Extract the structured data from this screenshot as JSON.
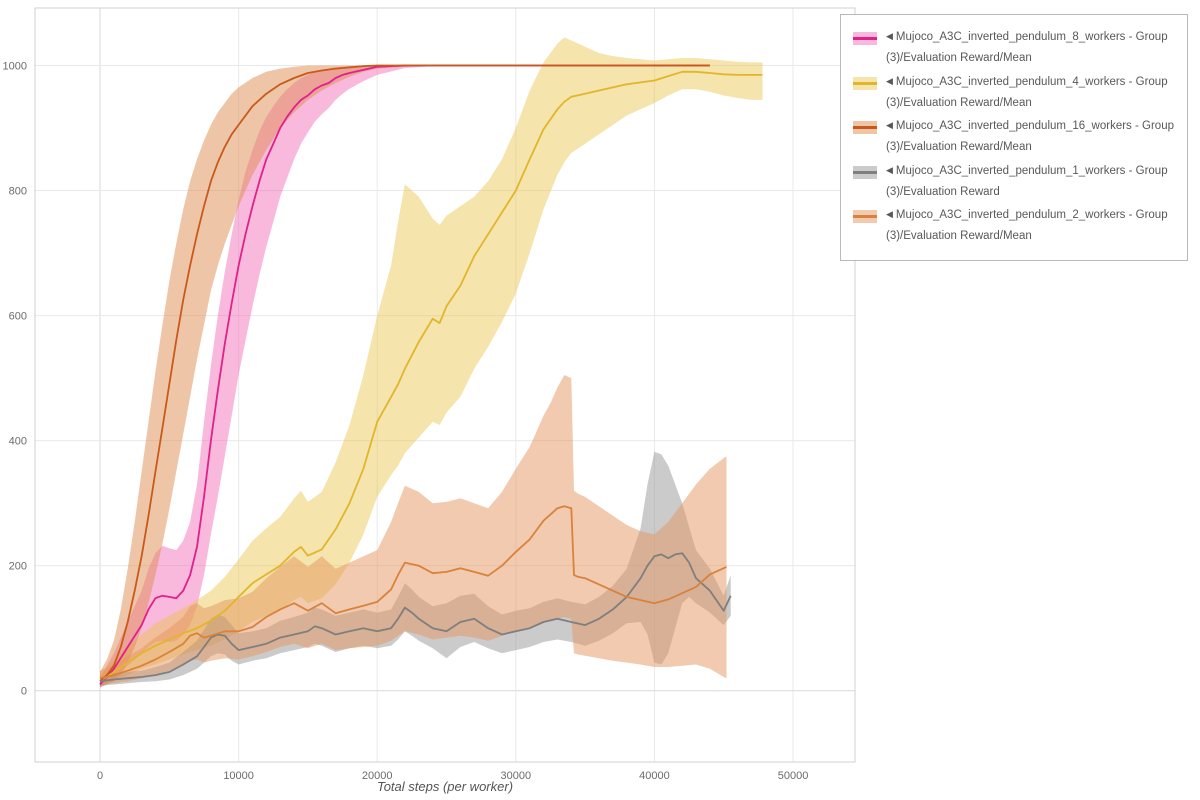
{
  "page": {
    "background": "#ffffff"
  },
  "legend": {
    "marker": "◀"
  },
  "chart_data": {
    "type": "line",
    "title": "",
    "xlabel": "Total steps (per worker)",
    "ylabel": "",
    "xlim": [
      -4690,
      54470
    ],
    "ylim": [
      -114,
      1092
    ],
    "xticks": [
      0,
      10000,
      20000,
      30000,
      40000,
      50000
    ],
    "yticks": [
      0,
      200,
      400,
      600,
      800,
      1000
    ],
    "grid": true,
    "legend_position": "top-right",
    "series": [
      {
        "id": "8_workers",
        "name": "Mujoco_A3C_inverted_pendulum_8_workers - Group(3)/Evaluation Reward/Mean",
        "color": "#e0218a",
        "band_color": "rgba(240,80,170,0.40)",
        "x": [
          0,
          1000,
          2000,
          3000,
          3500,
          4000,
          4500,
          5000,
          5500,
          6000,
          6500,
          7000,
          7500,
          8000,
          8500,
          9000,
          9500,
          10000,
          10500,
          11000,
          11500,
          12000,
          12500,
          13000,
          13500,
          14000,
          14500,
          15000,
          15500,
          16000,
          16500,
          17000,
          17500,
          18000,
          19000,
          20000,
          22000,
          24000,
          26000,
          28000,
          30000,
          32000,
          34000,
          36000,
          38000,
          40000,
          42000,
          44000
        ],
        "y": [
          10,
          35,
          70,
          105,
          130,
          148,
          152,
          150,
          148,
          160,
          185,
          230,
          310,
          400,
          480,
          555,
          620,
          680,
          730,
          775,
          815,
          850,
          875,
          900,
          918,
          933,
          945,
          952,
          962,
          968,
          972,
          980,
          985,
          988,
          993,
          998,
          1000,
          1000,
          1000,
          1000,
          1000,
          1000,
          1000,
          1000,
          1000,
          1000,
          1000,
          1000
        ],
        "lo": [
          5,
          20,
          40,
          60,
          70,
          78,
          80,
          78,
          80,
          90,
          105,
          135,
          185,
          250,
          310,
          375,
          440,
          505,
          560,
          615,
          665,
          710,
          750,
          790,
          820,
          850,
          875,
          893,
          910,
          922,
          932,
          945,
          955,
          963,
          975,
          985,
          996,
          999,
          1000,
          1000,
          1000,
          1000,
          1000,
          1000,
          1000,
          1000,
          1000,
          1000
        ],
        "hi": [
          20,
          60,
          110,
          160,
          195,
          220,
          232,
          228,
          225,
          240,
          270,
          330,
          430,
          520,
          600,
          670,
          730,
          785,
          830,
          865,
          895,
          918,
          935,
          950,
          962,
          972,
          980,
          985,
          990,
          993,
          995,
          997,
          998,
          999,
          1000,
          1000,
          1000,
          1000,
          1000,
          1000,
          1000,
          1000,
          1000,
          1000,
          1000,
          1000,
          1000,
          1000
        ]
      },
      {
        "id": "4_workers",
        "name": "Mujoco_A3C_inverted_pendulum_4_workers - Group(3)/Evaluation Reward/Mean",
        "color": "#e2b52a",
        "band_color": "rgba(233,196,70,0.45)",
        "x": [
          0,
          1000,
          2000,
          3000,
          4000,
          5000,
          6000,
          7000,
          8000,
          9000,
          10000,
          11000,
          12000,
          13000,
          14000,
          14500,
          15000,
          16000,
          17000,
          18000,
          19000,
          20000,
          21000,
          21500,
          22000,
          23000,
          24000,
          24500,
          25000,
          26000,
          27000,
          28000,
          29000,
          30000,
          31000,
          32000,
          33000,
          33500,
          34000,
          35000,
          36000,
          37000,
          38000,
          39000,
          40000,
          41000,
          42000,
          43000,
          44000,
          45000,
          46000,
          47000,
          47800
        ],
        "y": [
          15,
          30,
          45,
          60,
          72,
          82,
          92,
          100,
          112,
          128,
          150,
          172,
          186,
          200,
          222,
          230,
          216,
          226,
          258,
          300,
          355,
          430,
          470,
          490,
          515,
          558,
          595,
          588,
          615,
          648,
          695,
          730,
          765,
          800,
          850,
          898,
          930,
          942,
          950,
          955,
          960,
          965,
          970,
          973,
          976,
          983,
          990,
          990,
          988,
          986,
          985,
          985,
          985
        ],
        "lo": [
          8,
          15,
          25,
          35,
          42,
          50,
          58,
          65,
          72,
          82,
          95,
          110,
          120,
          130,
          145,
          150,
          140,
          148,
          170,
          205,
          250,
          310,
          345,
          360,
          380,
          405,
          430,
          425,
          445,
          470,
          515,
          550,
          590,
          635,
          700,
          770,
          825,
          845,
          860,
          875,
          890,
          905,
          920,
          930,
          940,
          952,
          962,
          962,
          958,
          952,
          948,
          945,
          945
        ],
        "hi": [
          25,
          50,
          70,
          90,
          108,
          120,
          132,
          145,
          160,
          182,
          210,
          240,
          260,
          278,
          308,
          320,
          302,
          318,
          365,
          425,
          505,
          600,
          680,
          750,
          810,
          790,
          755,
          745,
          760,
          775,
          790,
          815,
          850,
          900,
          960,
          1005,
          1035,
          1045,
          1040,
          1030,
          1020,
          1015,
          1012,
          1010,
          1008,
          1010,
          1012,
          1012,
          1010,
          1008,
          1006,
          1005,
          1005
        ]
      },
      {
        "id": "16_workers",
        "name": "Mujoco_A3C_inverted_pendulum_16_workers - Group(3)/Evaluation Reward/Mean",
        "color": "#c85a19",
        "band_color": "rgba(224,140,80,0.50)",
        "x": [
          0,
          500,
          1000,
          1500,
          2000,
          2500,
          3000,
          3500,
          4000,
          4500,
          5000,
          5500,
          6000,
          6500,
          7000,
          7500,
          8000,
          8500,
          9000,
          9500,
          10000,
          11000,
          12000,
          13000,
          14000,
          15000,
          16000,
          17000,
          18000,
          19000,
          20000,
          22000,
          24000,
          26000,
          28000,
          30000,
          32000,
          34000,
          36000,
          38000,
          40000,
          42000,
          44000
        ],
        "y": [
          15,
          25,
          40,
          70,
          110,
          160,
          215,
          280,
          350,
          420,
          490,
          560,
          625,
          680,
          730,
          775,
          815,
          845,
          870,
          890,
          905,
          935,
          955,
          970,
          980,
          988,
          992,
          995,
          997,
          999,
          1000,
          1000,
          1000,
          1000,
          1000,
          1000,
          1000,
          1000,
          1000,
          1000,
          1000,
          1000,
          1000
        ],
        "lo": [
          5,
          10,
          15,
          25,
          45,
          70,
          100,
          140,
          185,
          235,
          290,
          350,
          410,
          470,
          530,
          585,
          640,
          680,
          715,
          745,
          775,
          825,
          865,
          900,
          925,
          945,
          960,
          972,
          982,
          990,
          995,
          998,
          1000,
          1000,
          1000,
          1000,
          1000,
          1000,
          1000,
          1000,
          1000,
          1000,
          1000
        ],
        "hi": [
          30,
          50,
          80,
          130,
          195,
          270,
          350,
          430,
          510,
          585,
          655,
          715,
          770,
          815,
          850,
          880,
          905,
          925,
          940,
          955,
          965,
          980,
          990,
          995,
          998,
          1000,
          1000,
          1000,
          1000,
          1000,
          1000,
          1000,
          1000,
          1000,
          1000,
          1000,
          1000,
          1000,
          1000,
          1000,
          1000,
          1000,
          1000
        ]
      },
      {
        "id": "1_workers",
        "name": "Mujoco_A3C_inverted_pendulum_1_workers - Group(3)/Evaluation Reward",
        "color": "#7f7f7f",
        "band_color": "rgba(140,140,140,0.45)",
        "x": [
          0,
          1000,
          2000,
          3000,
          4000,
          5000,
          6000,
          7000,
          7500,
          8000,
          8500,
          9000,
          9500,
          10000,
          11000,
          12000,
          13000,
          14000,
          15000,
          15500,
          16000,
          17000,
          18000,
          19000,
          20000,
          21000,
          21500,
          22000,
          22500,
          23000,
          24000,
          25000,
          26000,
          27000,
          28000,
          29000,
          30000,
          31000,
          32000,
          33000,
          34000,
          35000,
          36000,
          37000,
          38000,
          39000,
          39500,
          40000,
          40500,
          41000,
          41500,
          42000,
          42500,
          43000,
          44000,
          45000,
          45500
        ],
        "y": [
          15,
          18,
          20,
          22,
          25,
          30,
          42,
          55,
          70,
          85,
          90,
          88,
          75,
          65,
          70,
          75,
          85,
          90,
          95,
          103,
          100,
          90,
          95,
          100,
          95,
          100,
          115,
          133,
          125,
          115,
          100,
          95,
          110,
          115,
          100,
          90,
          95,
          100,
          110,
          115,
          110,
          105,
          115,
          130,
          150,
          180,
          200,
          215,
          218,
          212,
          218,
          220,
          205,
          180,
          160,
          128,
          152
        ],
        "lo": [
          8,
          10,
          12,
          14,
          15,
          18,
          25,
          35,
          45,
          55,
          60,
          58,
          48,
          42,
          48,
          52,
          60,
          65,
          70,
          75,
          72,
          62,
          68,
          72,
          68,
          72,
          82,
          95,
          88,
          80,
          68,
          52,
          70,
          78,
          68,
          60,
          65,
          70,
          78,
          82,
          78,
          72,
          80,
          92,
          108,
          110,
          90,
          45,
          42,
          60,
          100,
          140,
          150,
          140,
          125,
          105,
          120
        ],
        "hi": [
          22,
          28,
          30,
          32,
          38,
          45,
          62,
          80,
          98,
          115,
          122,
          118,
          105,
          92,
          95,
          100,
          112,
          118,
          125,
          133,
          130,
          120,
          125,
          130,
          125,
          130,
          150,
          172,
          162,
          150,
          135,
          140,
          152,
          155,
          135,
          122,
          128,
          132,
          142,
          148,
          142,
          138,
          150,
          168,
          195,
          260,
          330,
          382,
          378,
          360,
          330,
          300,
          262,
          225,
          195,
          152,
          185
        ]
      },
      {
        "id": "2_workers",
        "name": "Mujoco_A3C_inverted_pendulum_2_workers - Group(3)/Evaluation Reward/Mean",
        "color": "#d9823b",
        "band_color": "rgba(230,150,95,0.50)",
        "x": [
          0,
          1000,
          2000,
          3000,
          4000,
          5000,
          6000,
          6500,
          7000,
          7500,
          8000,
          9000,
          10000,
          11000,
          12000,
          13000,
          14000,
          15000,
          16000,
          17000,
          18000,
          19000,
          20000,
          21000,
          21500,
          22000,
          23000,
          24000,
          25000,
          26000,
          27000,
          28000,
          29000,
          30000,
          31000,
          32000,
          32500,
          33000,
          33500,
          34000,
          34200,
          34500,
          35000,
          36000,
          37000,
          38000,
          39000,
          40000,
          41000,
          42000,
          43000,
          44000,
          45000,
          45200
        ],
        "y": [
          20,
          25,
          32,
          40,
          50,
          62,
          75,
          88,
          92,
          85,
          88,
          95,
          95,
          102,
          118,
          130,
          140,
          128,
          140,
          124,
          130,
          136,
          142,
          162,
          185,
          205,
          200,
          188,
          190,
          196,
          190,
          184,
          200,
          222,
          242,
          272,
          282,
          292,
          295,
          292,
          185,
          182,
          180,
          170,
          160,
          150,
          145,
          140,
          146,
          156,
          166,
          186,
          196,
          198
        ],
        "lo": [
          10,
          12,
          15,
          20,
          25,
          32,
          40,
          48,
          50,
          45,
          48,
          52,
          50,
          55,
          62,
          70,
          75,
          68,
          75,
          65,
          68,
          70,
          72,
          80,
          88,
          95,
          90,
          82,
          85,
          88,
          85,
          80,
          88,
          95,
          100,
          110,
          112,
          115,
          118,
          115,
          60,
          58,
          56,
          52,
          48,
          45,
          42,
          38,
          38,
          40,
          42,
          35,
          22,
          20
        ],
        "hi": [
          32,
          42,
          55,
          68,
          85,
          100,
          118,
          135,
          140,
          132,
          135,
          145,
          148,
          158,
          180,
          198,
          215,
          198,
          215,
          195,
          205,
          215,
          225,
          270,
          300,
          328,
          318,
          300,
          302,
          308,
          300,
          292,
          318,
          355,
          390,
          440,
          460,
          485,
          505,
          500,
          320,
          315,
          310,
          295,
          280,
          265,
          255,
          250,
          270,
          300,
          330,
          355,
          372,
          375
        ]
      }
    ]
  }
}
